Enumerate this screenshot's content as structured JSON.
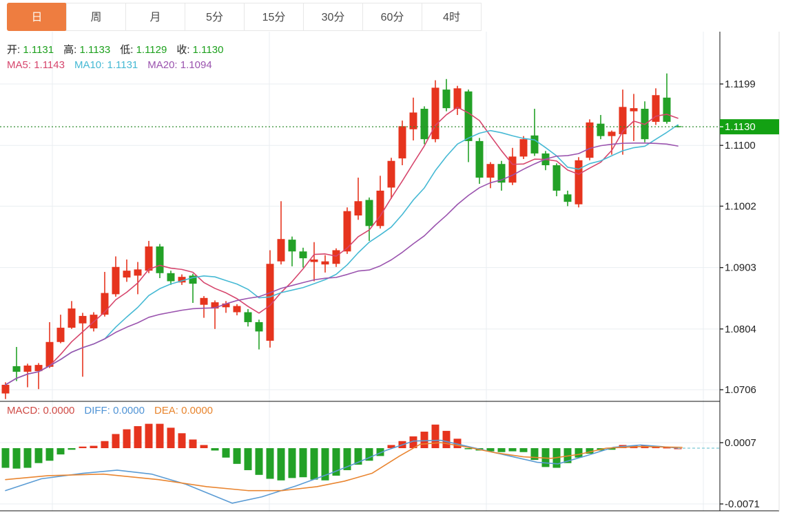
{
  "tabs": {
    "items": [
      {
        "label": "日",
        "selected": true
      },
      {
        "label": "周",
        "selected": false
      },
      {
        "label": "月",
        "selected": false
      },
      {
        "label": "5分",
        "selected": false
      },
      {
        "label": "15分",
        "selected": false
      },
      {
        "label": "30分",
        "selected": false
      },
      {
        "label": "60分",
        "selected": false
      },
      {
        "label": "4时",
        "selected": false
      }
    ]
  },
  "legend": {
    "ohlc": [
      {
        "label": "开:",
        "value": "1.1131"
      },
      {
        "label": "高:",
        "value": "1.1133"
      },
      {
        "label": "低:",
        "value": "1.1129"
      },
      {
        "label": "收:",
        "value": "1.1130"
      }
    ],
    "ma": [
      {
        "label": "MA5:",
        "value": "1.1143",
        "color": "#d6456c"
      },
      {
        "label": "MA10:",
        "value": "1.1131",
        "color": "#45b9d4"
      },
      {
        "label": "MA20:",
        "value": "1.1094",
        "color": "#9a53ae"
      }
    ]
  },
  "macd_legend": [
    {
      "label": "MACD:",
      "value": "0.0000",
      "color": "#cf4a45"
    },
    {
      "label": "DIFF:",
      "value": "0.0000",
      "color": "#4f93d5"
    },
    {
      "label": "DEA:",
      "value": "0.0000",
      "color": "#e8842c"
    }
  ],
  "price_axis": {
    "ticks": [
      {
        "label": "1.1199",
        "price": 1.1199
      },
      {
        "label": "1.1100",
        "price": 1.11
      },
      {
        "label": "1.1002",
        "price": 1.1002
      },
      {
        "label": "1.0903",
        "price": 1.0903
      },
      {
        "label": "1.0804",
        "price": 1.0804
      },
      {
        "label": "1.0706",
        "price": 1.0706
      }
    ],
    "current": {
      "label": "1.1130",
      "price": 1.113
    }
  },
  "macd_axis": {
    "ticks": [
      {
        "label": "0.0007",
        "value": 0.0007
      },
      {
        "label": "-0.0071",
        "value": -0.0071
      }
    ]
  },
  "colors": {
    "up": "#e6341e",
    "down": "#23a127",
    "ma5": "#d6456c",
    "ma10": "#45b9d4",
    "ma20": "#9a53ae",
    "diff": "#5a9bd4",
    "dea": "#e98530",
    "tab_selected_bg": "#ee7d40",
    "price_tag_bg": "#13a113",
    "ohlc_value_green": "#1ca01c",
    "dotted_current_line": "#2e8b2e",
    "dashed_macd_line": "#8fd0dc",
    "grid": "#e9eef1",
    "axis_line": "#111111",
    "outer_border": "#e0e0e0"
  },
  "chart_data": {
    "type": "candlestick_with_macd",
    "title": "",
    "panels": [
      {
        "type": "candlestick",
        "name": "price-panel",
        "y_axis_ticks": [
          1.1199,
          1.11,
          1.1002,
          1.0903,
          1.0804,
          1.0706
        ],
        "current_price": 1.113,
        "candles_ohlc": [
          [
            1.07,
            1.0718,
            1.0691,
            1.0714
          ],
          [
            1.0744,
            1.0775,
            1.072,
            1.0735
          ],
          [
            1.0735,
            1.0748,
            1.071,
            1.0745
          ],
          [
            1.0736,
            1.0749,
            1.0707,
            1.0746
          ],
          [
            1.0743,
            1.0815,
            1.0741,
            1.0783
          ],
          [
            1.0783,
            1.0827,
            1.0781,
            1.0806
          ],
          [
            1.0806,
            1.0849,
            1.0804,
            1.0837
          ],
          [
            1.0813,
            1.083,
            1.0727,
            1.0825
          ],
          [
            1.0805,
            1.0831,
            1.08,
            1.0827
          ],
          [
            1.0827,
            1.0896,
            1.0824,
            1.0862
          ],
          [
            1.086,
            1.0921,
            1.0856,
            1.0904
          ],
          [
            1.0887,
            1.0916,
            1.088,
            1.0898
          ],
          [
            1.089,
            1.0912,
            1.086,
            1.09
          ],
          [
            1.0898,
            1.0946,
            1.0894,
            1.0937
          ],
          [
            1.0937,
            1.0941,
            1.0886,
            1.0894
          ],
          [
            1.0894,
            1.0898,
            1.0875,
            1.0881
          ],
          [
            1.0879,
            1.0892,
            1.0875,
            1.0888
          ],
          [
            1.089,
            1.0893,
            1.0846,
            1.0877
          ],
          [
            1.0843,
            1.0857,
            1.0822,
            1.0854
          ],
          [
            1.0837,
            1.085,
            1.0804,
            1.0847
          ],
          [
            1.0839,
            1.0849,
            1.083,
            1.0845
          ],
          [
            1.0831,
            1.0844,
            1.0826,
            1.0841
          ],
          [
            1.0831,
            1.0836,
            1.0808,
            1.0815
          ],
          [
            1.0815,
            1.0819,
            1.0771,
            1.08
          ],
          [
            1.0785,
            1.0931,
            1.0774,
            1.0909
          ],
          [
            1.0913,
            1.101,
            1.0908,
            1.0949
          ],
          [
            1.0948,
            1.0953,
            1.0905,
            1.0929
          ],
          [
            1.0929,
            1.0935,
            1.0903,
            1.0918
          ],
          [
            1.0912,
            1.0944,
            1.0881,
            1.0916
          ],
          [
            1.0908,
            1.0923,
            1.0895,
            1.0913
          ],
          [
            1.0909,
            1.0934,
            1.0904,
            1.0931
          ],
          [
            1.0929,
            1.1,
            1.0925,
            1.0994
          ],
          [
            1.0987,
            1.1048,
            1.098,
            1.101
          ],
          [
            1.1012,
            1.1016,
            1.0946,
            1.097
          ],
          [
            1.097,
            1.1051,
            1.0966,
            1.1027
          ],
          [
            1.1032,
            1.108,
            1.1014,
            1.1075
          ],
          [
            1.1079,
            1.114,
            1.1068,
            1.1131
          ],
          [
            1.1126,
            1.1177,
            1.1108,
            1.1153
          ],
          [
            1.1159,
            1.1163,
            1.1102,
            1.111
          ],
          [
            1.111,
            1.1205,
            1.1105,
            1.1193
          ],
          [
            1.119,
            1.1207,
            1.1155,
            1.116
          ],
          [
            1.1159,
            1.1196,
            1.1149,
            1.1192
          ],
          [
            1.1187,
            1.119,
            1.1073,
            1.1107
          ],
          [
            1.1107,
            1.1112,
            1.1038,
            1.1048
          ],
          [
            1.1048,
            1.1073,
            1.1031,
            1.107
          ],
          [
            1.107,
            1.1075,
            1.1027,
            1.104
          ],
          [
            1.104,
            1.1096,
            1.1036,
            1.1082
          ],
          [
            1.1082,
            1.1115,
            1.1078,
            1.111
          ],
          [
            1.1116,
            1.1159,
            1.1083,
            1.1087
          ],
          [
            1.1087,
            1.1091,
            1.106,
            1.1068
          ],
          [
            1.1068,
            1.1071,
            1.1018,
            1.1027
          ],
          [
            1.1021,
            1.1027,
            1.1002,
            1.1009
          ],
          [
            1.1005,
            1.1081,
            1.1,
            1.1076
          ],
          [
            1.108,
            1.1142,
            1.1076,
            1.1137
          ],
          [
            1.1135,
            1.1149,
            1.111,
            1.1115
          ],
          [
            1.1115,
            1.1124,
            1.1085,
            1.1122
          ],
          [
            1.1118,
            1.119,
            1.1085,
            1.1162
          ],
          [
            1.1155,
            1.1183,
            1.1107,
            1.116
          ],
          [
            1.1159,
            1.1171,
            1.1105,
            1.111
          ],
          [
            1.1138,
            1.1192,
            1.1133,
            1.1181
          ],
          [
            1.1177,
            1.1216,
            1.1135,
            1.1138
          ],
          [
            1.1131,
            1.1133,
            1.1129,
            1.113
          ]
        ],
        "moving_averages": {
          "MA5": 1.1143,
          "MA10": 1.1131,
          "MA20": 1.1094
        }
      },
      {
        "type": "macd",
        "name": "macd-panel",
        "y_axis_ticks": [
          0.0007,
          -0.0071
        ],
        "histogram": [
          -0.0025,
          -0.0026,
          -0.0025,
          -0.0019,
          -0.0016,
          -0.0008,
          -0.0002,
          0.0002,
          0.0003,
          0.0009,
          0.0018,
          0.0024,
          0.0028,
          0.0031,
          0.0031,
          0.0026,
          0.0019,
          0.0011,
          0.0004,
          -0.0003,
          -0.0012,
          -0.002,
          -0.0028,
          -0.0034,
          -0.0039,
          -0.0041,
          -0.0038,
          -0.0037,
          -0.004,
          -0.0041,
          -0.0035,
          -0.0028,
          -0.0021,
          -0.0016,
          -0.001,
          0.0004,
          0.0009,
          0.0015,
          0.0021,
          0.003,
          0.0022,
          0.0012,
          -0.0001,
          -0.0003,
          -0.0004,
          -0.0005,
          -0.0004,
          -0.0005,
          -0.0015,
          -0.0024,
          -0.0025,
          -0.0019,
          -0.0012,
          -0.0007,
          -0.0003,
          -0.0002,
          0.0004,
          0.0003,
          0.0004,
          0.0002,
          0.0001,
          0.0
        ],
        "diff_line": [
          [
            8,
            -0.0054
          ],
          [
            60,
            -0.0039
          ],
          [
            120,
            -0.0032
          ],
          [
            170,
            -0.0028
          ],
          [
            220,
            -0.0033
          ],
          [
            270,
            -0.0046
          ],
          [
            337,
            -0.007
          ],
          [
            380,
            -0.0062
          ],
          [
            430,
            -0.0048
          ],
          [
            480,
            -0.0032
          ],
          [
            520,
            -0.0018
          ],
          [
            560,
            -0.0003
          ],
          [
            600,
            0.0009
          ],
          [
            640,
            0.001
          ],
          [
            670,
            0.0004
          ],
          [
            700,
            -0.0002
          ],
          [
            740,
            -0.001
          ],
          [
            780,
            -0.0018
          ],
          [
            810,
            -0.002
          ],
          [
            850,
            -0.001
          ],
          [
            890,
            0.0001
          ],
          [
            930,
            0.0004
          ],
          [
            960,
            0.0002
          ],
          [
            985,
            0.0
          ]
        ],
        "dea_line": [
          [
            8,
            -0.004
          ],
          [
            70,
            -0.0035
          ],
          [
            150,
            -0.0033
          ],
          [
            230,
            -0.004
          ],
          [
            300,
            -0.0049
          ],
          [
            360,
            -0.0054
          ],
          [
            410,
            -0.0054
          ],
          [
            460,
            -0.0049
          ],
          [
            500,
            -0.0042
          ],
          [
            540,
            -0.0032
          ],
          [
            580,
            -0.001
          ],
          [
            610,
            0.0005
          ],
          [
            640,
            0.0007
          ],
          [
            680,
            0.0001
          ],
          [
            720,
            -0.0006
          ],
          [
            760,
            -0.0011
          ],
          [
            800,
            -0.0013
          ],
          [
            840,
            -0.0008
          ],
          [
            880,
            0.0
          ],
          [
            930,
            0.0002
          ],
          [
            990,
            0.0001
          ]
        ]
      }
    ]
  }
}
